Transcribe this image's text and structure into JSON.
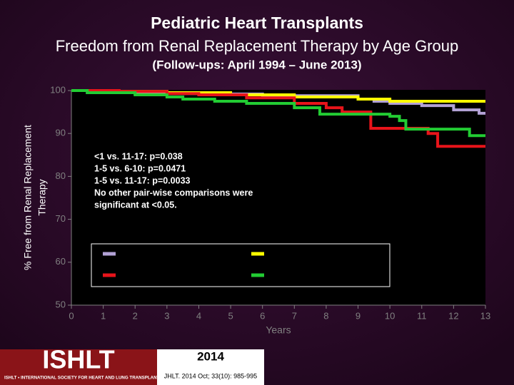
{
  "chart_data": {
    "type": "step",
    "title": "Pediatric Heart Transplants",
    "subtitle": "Freedom from Renal Replacement Therapy by Age Group",
    "note": "(Follow-ups: April 1994 – June 2013)",
    "ylabel": [
      "% Free from Renal Replacement",
      "Therapy"
    ],
    "xlabel": "Years",
    "xlim": [
      0,
      13
    ],
    "xticks": [
      0,
      1,
      2,
      3,
      4,
      5,
      6,
      7,
      8,
      9,
      10,
      11,
      12,
      13
    ],
    "ylim": [
      50,
      100
    ],
    "yticks": [
      50,
      60,
      70,
      80,
      90,
      100
    ],
    "annotation": [
      "<1 vs. 11-17: p=0.038",
      "1-5 vs. 6-10: p=0.0471",
      "1-5 vs. 11-17: p=0.0033",
      "No other pair-wise comparisons were",
      "significant at <0.05."
    ],
    "series": [
      {
        "color": "#b3a2d6",
        "x": [
          0,
          0.5,
          2,
          4,
          6,
          9,
          9.5,
          10,
          11,
          12,
          12.8,
          13
        ],
        "values": [
          100,
          99.5,
          99.3,
          99.2,
          98.8,
          98,
          97.5,
          97,
          96.5,
          95.5,
          94.7,
          94.7
        ]
      },
      {
        "color": "#ffff00",
        "x": [
          0,
          1,
          3,
          5,
          7,
          9,
          10,
          13
        ],
        "values": [
          100,
          99.8,
          99.5,
          99,
          98.5,
          98,
          97.5,
          97.5
        ]
      },
      {
        "color": "#e8141a",
        "x": [
          0,
          1.5,
          3,
          4,
          5.5,
          7,
          8,
          8.5,
          9.4,
          11.2,
          11.5,
          13
        ],
        "values": [
          100,
          99.8,
          99.3,
          99,
          98.3,
          97,
          96,
          95,
          91.2,
          90,
          87,
          87
        ]
      },
      {
        "color": "#22cc33",
        "x": [
          0,
          0.5,
          2,
          3,
          3.5,
          4.5,
          5.5,
          7,
          7.8,
          10,
          10.3,
          10.5,
          12.5,
          13
        ],
        "values": [
          100,
          99.5,
          99,
          98.5,
          98,
          97.5,
          97,
          96,
          94.5,
          94,
          93,
          91,
          89.5,
          89.5
        ]
      }
    ]
  },
  "footer": {
    "logo": "ISHLT",
    "society": "ISHLT • INTERNATIONAL SOCIETY FOR HEART AND LUNG TRANSPLANTATION",
    "year": "2014",
    "citation": "JHLT. 2014 Oct; 33(10): 985-995"
  }
}
